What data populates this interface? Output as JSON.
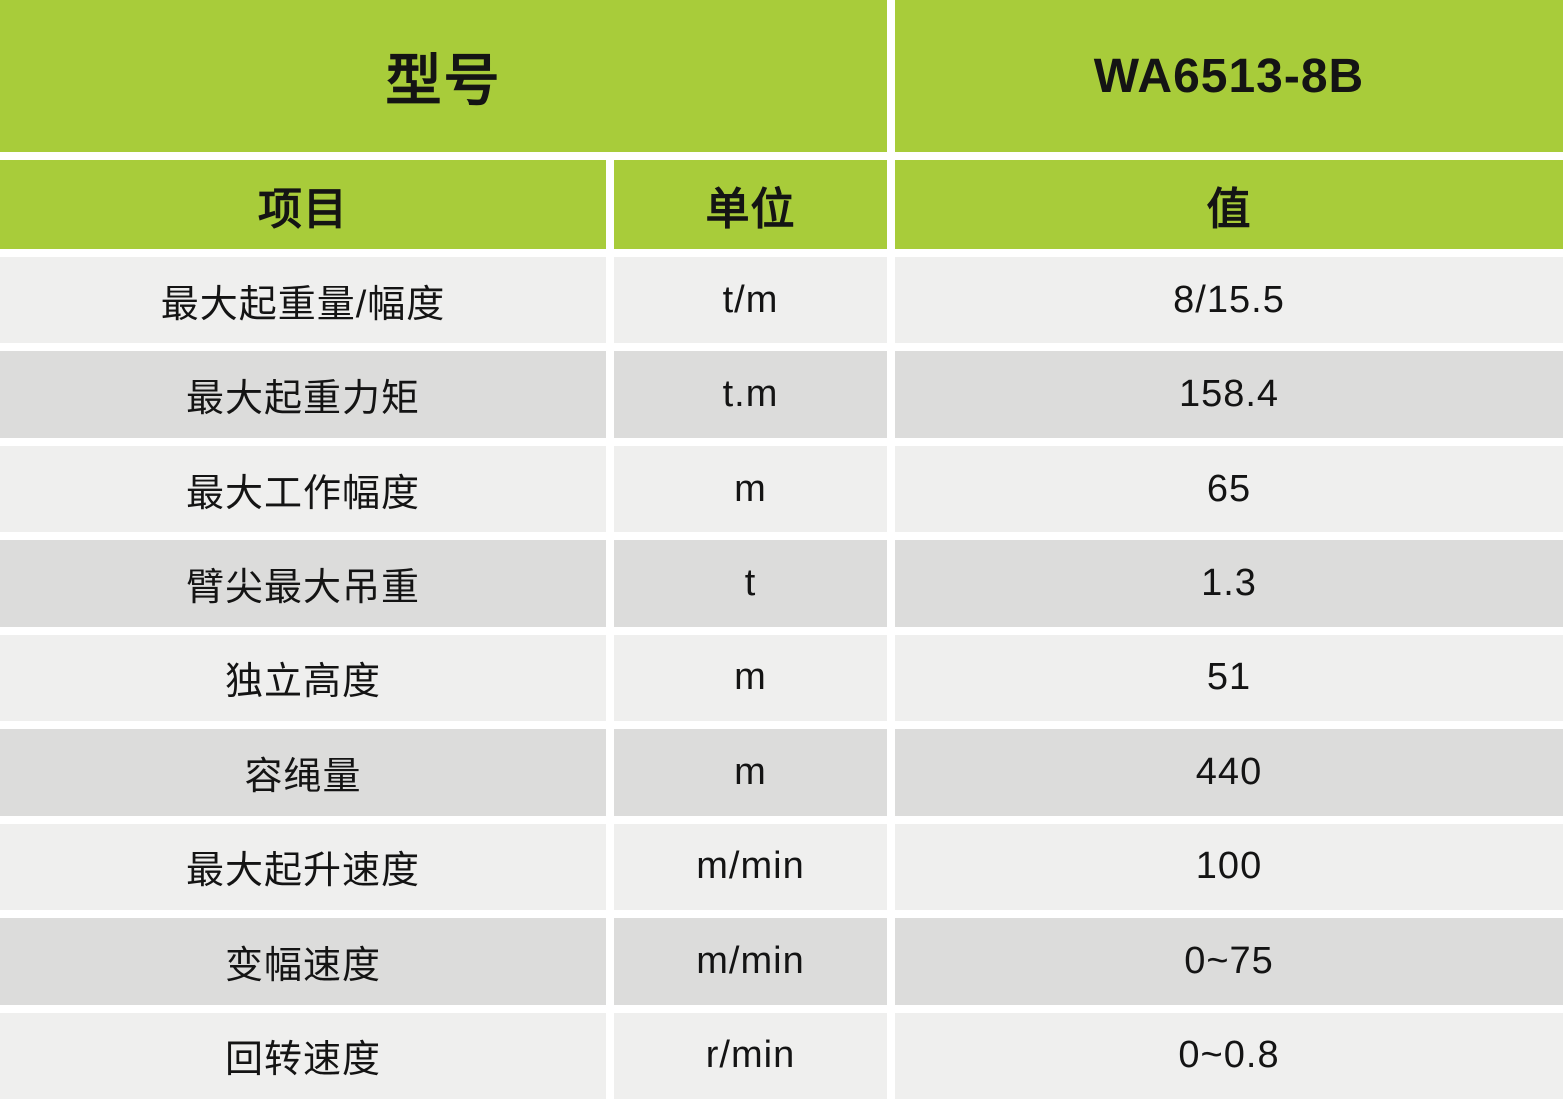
{
  "chart_data": {
    "type": "table",
    "model_header": {
      "label": "型号",
      "value": "WA6513-8B"
    },
    "columns": [
      "项目",
      "单位",
      "值"
    ],
    "rows": [
      [
        "最大起重量/幅度",
        "t/m",
        "8/15.5"
      ],
      [
        "最大起重力矩",
        "t.m",
        "158.4"
      ],
      [
        "最大工作幅度",
        "m",
        "65"
      ],
      [
        "臂尖最大吊重",
        "t",
        "1.3"
      ],
      [
        "独立高度",
        "m",
        "51"
      ],
      [
        "容绳量",
        "m",
        "440"
      ],
      [
        "最大起升速度",
        "m/min",
        "100"
      ],
      [
        "变幅速度",
        "m/min",
        "0~75"
      ],
      [
        "回转速度",
        "r/min",
        "0~0.8"
      ]
    ],
    "layout": {
      "header_rows_background": "green",
      "body_rows": "alternating light/dark gray stripes",
      "grid": "white gaps between all cells"
    }
  },
  "colors": {
    "header_green": "#a8cc3a",
    "row_light": "#efefee",
    "row_dark": "#dcdcdb",
    "gap_white": "#ffffff",
    "text": "#141414"
  }
}
